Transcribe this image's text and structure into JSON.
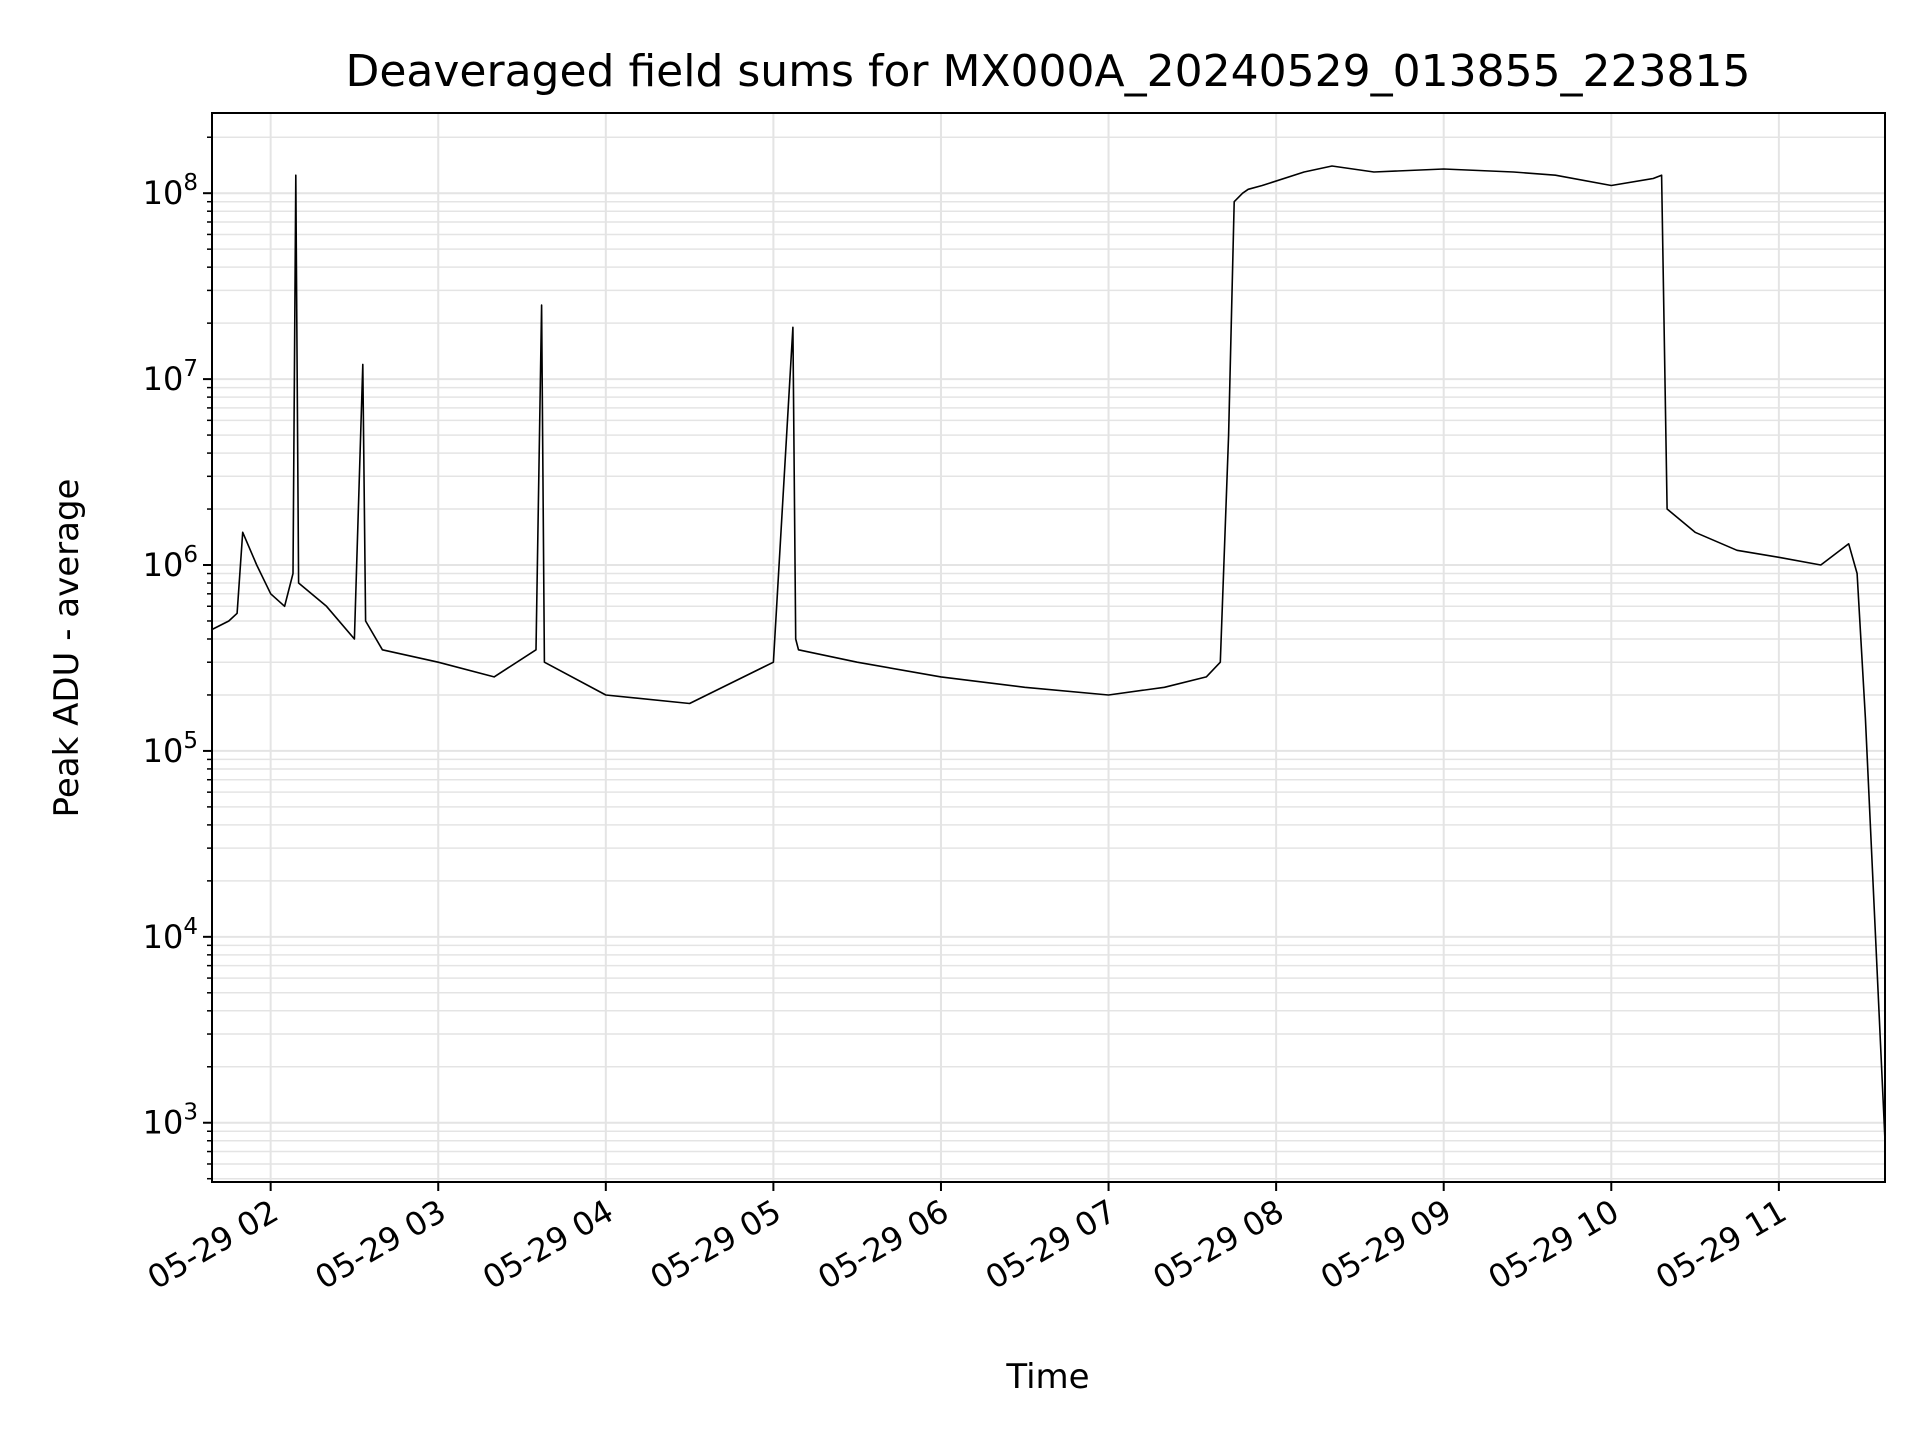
{
  "chart_data": {
    "type": "line",
    "title": "Deaveraged field sums for MX000A_20240529_013855_223815",
    "xlabel": "Time",
    "ylabel": "Peak ADU - average",
    "yscale": "log",
    "ylim": [
      480,
      270000000
    ],
    "xlim": [
      "2024-05-29 01:39",
      "2024-05-29 11:38"
    ],
    "grid": true,
    "line_color": "#000000",
    "grid_color": "#e4e4e4",
    "x_ticks": [
      {
        "t": "2024-05-29 02:00",
        "label": "05-29 02"
      },
      {
        "t": "2024-05-29 03:00",
        "label": "05-29 03"
      },
      {
        "t": "2024-05-29 04:00",
        "label": "05-29 04"
      },
      {
        "t": "2024-05-29 05:00",
        "label": "05-29 05"
      },
      {
        "t": "2024-05-29 06:00",
        "label": "05-29 06"
      },
      {
        "t": "2024-05-29 07:00",
        "label": "05-29 07"
      },
      {
        "t": "2024-05-29 08:00",
        "label": "05-29 08"
      },
      {
        "t": "2024-05-29 09:00",
        "label": "05-29 09"
      },
      {
        "t": "2024-05-29 10:00",
        "label": "05-29 10"
      },
      {
        "t": "2024-05-29 11:00",
        "label": "05-29 11"
      }
    ],
    "y_ticks": [
      {
        "value": 1000,
        "base": "10",
        "exp": "3"
      },
      {
        "value": 10000,
        "base": "10",
        "exp": "4"
      },
      {
        "value": 100000,
        "base": "10",
        "exp": "5"
      },
      {
        "value": 1000000,
        "base": "10",
        "exp": "6"
      },
      {
        "value": 10000000,
        "base": "10",
        "exp": "7"
      },
      {
        "value": 100000000,
        "base": "10",
        "exp": "8"
      }
    ],
    "series": [
      {
        "x": [
          "2024-05-29 01:39",
          "2024-05-29 01:45",
          "2024-05-29 01:48",
          "2024-05-29 01:50",
          "2024-05-29 01:55",
          "2024-05-29 02:00",
          "2024-05-29 02:05",
          "2024-05-29 02:08",
          "2024-05-29 02:09",
          "2024-05-29 02:10",
          "2024-05-29 02:20",
          "2024-05-29 02:30",
          "2024-05-29 02:33",
          "2024-05-29 02:34",
          "2024-05-29 02:40",
          "2024-05-29 03:00",
          "2024-05-29 03:20",
          "2024-05-29 03:35",
          "2024-05-29 03:37",
          "2024-05-29 03:38",
          "2024-05-29 04:00",
          "2024-05-29 04:30",
          "2024-05-29 05:00",
          "2024-05-29 05:07",
          "2024-05-29 05:08",
          "2024-05-29 05:09",
          "2024-05-29 05:30",
          "2024-05-29 06:00",
          "2024-05-29 06:30",
          "2024-05-29 07:00",
          "2024-05-29 07:20",
          "2024-05-29 07:35",
          "2024-05-29 07:40",
          "2024-05-29 07:43",
          "2024-05-29 07:45",
          "2024-05-29 07:48",
          "2024-05-29 07:50",
          "2024-05-29 07:55",
          "2024-05-29 08:10",
          "2024-05-29 08:20",
          "2024-05-29 08:35",
          "2024-05-29 09:00",
          "2024-05-29 09:25",
          "2024-05-29 09:40",
          "2024-05-29 10:00",
          "2024-05-29 10:15",
          "2024-05-29 10:18",
          "2024-05-29 10:20",
          "2024-05-29 10:30",
          "2024-05-29 10:45",
          "2024-05-29 11:00",
          "2024-05-29 11:15",
          "2024-05-29 11:25",
          "2024-05-29 11:28",
          "2024-05-29 11:31",
          "2024-05-29 11:38"
        ],
        "y": [
          450000,
          500000,
          550000,
          1500000,
          1000000,
          700000,
          600000,
          900000,
          125000000,
          800000,
          600000,
          400000,
          12000000,
          500000,
          350000,
          300000,
          250000,
          350000,
          25000000,
          300000,
          200000,
          180000,
          300000,
          19000000,
          400000,
          350000,
          300000,
          250000,
          220000,
          200000,
          220000,
          250000,
          300000,
          5000000,
          90000000,
          100000000,
          105000000,
          110000000,
          130000000,
          140000000,
          130000000,
          135000000,
          130000000,
          125000000,
          110000000,
          120000000,
          125000000,
          2000000,
          1500000,
          1200000,
          1100000,
          1000000,
          1300000,
          900000,
          150000,
          800
        ]
      }
    ]
  }
}
